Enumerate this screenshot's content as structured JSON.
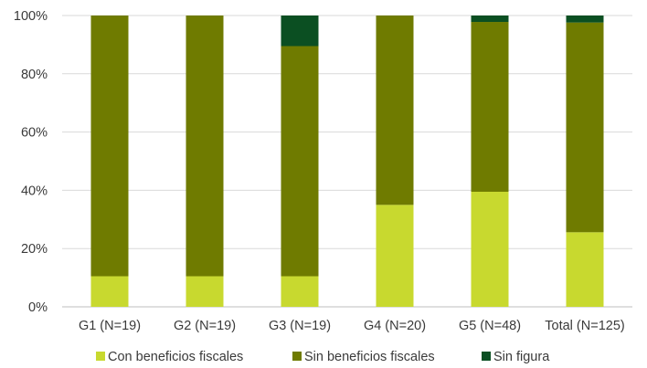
{
  "chart_data": {
    "type": "bar",
    "stacked": true,
    "categories": [
      "G1 (N=19)",
      "G2 (N=19)",
      "G3 (N=19)",
      "G4 (N=20)",
      "G5 (N=48)",
      "Total (N=125)"
    ],
    "series": [
      {
        "name": "Con beneficios fiscales",
        "color": "#c8d92f",
        "values": [
          10.5,
          10.5,
          10.5,
          35,
          39.5,
          25.6
        ]
      },
      {
        "name": "Sin beneficios fiscales",
        "color": "#6f7b00",
        "values": [
          89.5,
          89.5,
          79,
          65,
          58.3,
          72.0
        ]
      },
      {
        "name": "Sin figura",
        "color": "#0b4f22",
        "values": [
          0,
          0,
          10.5,
          0,
          2.2,
          2.4
        ]
      }
    ],
    "yticks": [
      "0%",
      "20%",
      "40%",
      "60%",
      "80%",
      "100%"
    ],
    "ylim": [
      0,
      100
    ],
    "grid": true,
    "legend_position": "bottom"
  }
}
